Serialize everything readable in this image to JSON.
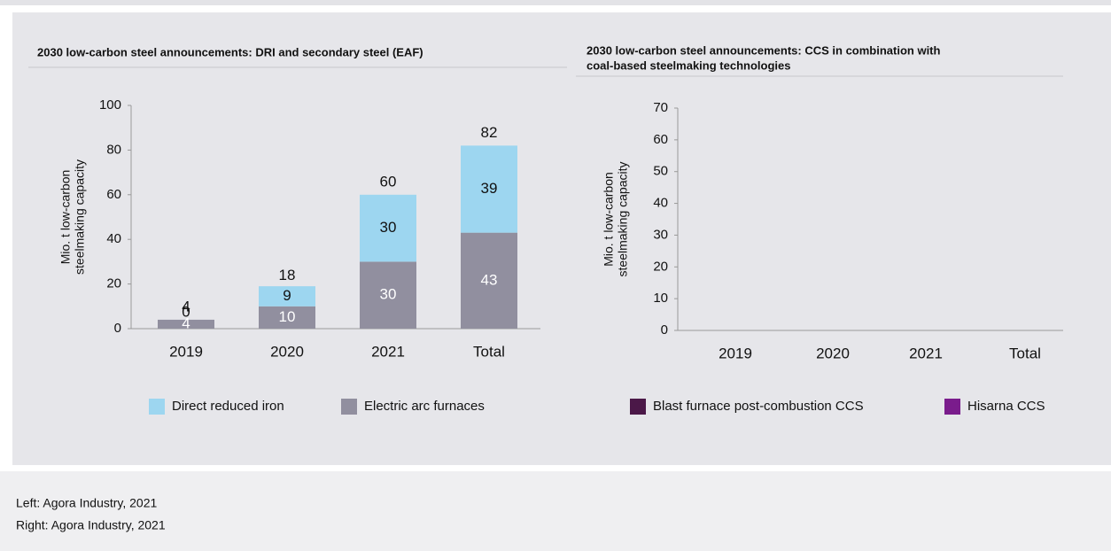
{
  "chart_data": [
    {
      "type": "bar",
      "stacked": true,
      "title": [
        "2030 low-carbon steel announcements:  DRI and secondary steel (EAF)"
      ],
      "y_label": [
        "Mio. t low-carbon",
        "steelmaking capacity"
      ],
      "categories": [
        "2019",
        "2020",
        "2021",
        "Total"
      ],
      "series": [
        {
          "name": "Direct reduced iron",
          "color": "#9dd6f0",
          "values": [
            0,
            9,
            30,
            39
          ]
        },
        {
          "name": "Electric arc furnaces",
          "color": "#918f9f",
          "values": [
            4,
            10,
            30,
            43
          ]
        }
      ],
      "totals": [
        4,
        18,
        60,
        82
      ],
      "ylim": [
        0,
        100
      ],
      "yticks": [
        0,
        20,
        40,
        60,
        80,
        100
      ]
    },
    {
      "type": "bar",
      "stacked": true,
      "title": [
        "2030 low-carbon steel announcements:  CCS in combination with",
        "coal-based steelmaking technologies"
      ],
      "y_label": [
        "Mio. t low-carbon",
        "steelmaking capacity"
      ],
      "categories": [
        "2019",
        "2020",
        "2021",
        "Total"
      ],
      "series": [
        {
          "name": "Blast furnace post-combustion CCS",
          "color": "#4b1848",
          "values": [
            null,
            null,
            null,
            null
          ]
        },
        {
          "name": "Hisarna CCS",
          "color": "#7a1c8c",
          "values": [
            null,
            null,
            null,
            null
          ]
        }
      ],
      "ylim": [
        0,
        70
      ],
      "yticks": [
        0,
        10,
        20,
        30,
        40,
        50,
        60,
        70
      ]
    }
  ],
  "sources": [
    "Left: Agora Industry, 2021",
    "Right: Agora Industry, 2021"
  ]
}
